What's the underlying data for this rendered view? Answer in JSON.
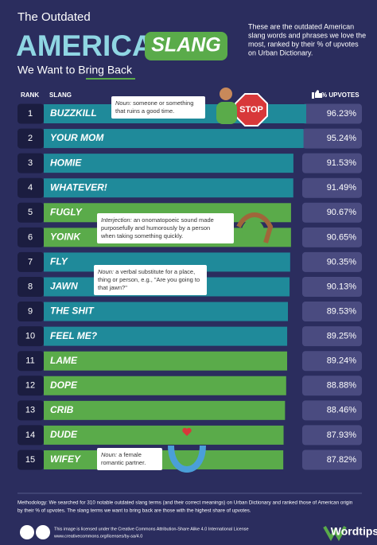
{
  "chart_data": {
    "type": "bar",
    "title_parts": [
      "The Outdated",
      "AMERICAN",
      "SLANG",
      "We Want to Bring Back"
    ],
    "description": [
      "These are the outdated American",
      "slang words and phrases we love the",
      "most, ranked by their % of upvotes",
      "on Urban Dictionary."
    ],
    "headers": [
      "RANK",
      "SLANG",
      "% UPVOTES"
    ],
    "ranks": [
      "1",
      "2",
      "3",
      "4",
      "5",
      "6",
      "7",
      "8",
      "9",
      "10",
      "11",
      "12",
      "13",
      "14",
      "15"
    ],
    "categories": [
      "BUZZKILL",
      "YOUR MOM",
      "HOMIE",
      "WHATEVER!",
      "FUGLY",
      "YOINK",
      "FLY",
      "JAWN",
      "THE SHIT",
      "FEEL ME?",
      "LAME",
      "DOPE",
      "CRIB",
      "DUDE",
      "WIFEY"
    ],
    "values": [
      96.23,
      95.24,
      91.53,
      91.49,
      90.67,
      90.65,
      90.35,
      90.13,
      89.53,
      89.25,
      89.24,
      88.88,
      88.46,
      87.93,
      87.82
    ],
    "value_labels": [
      "96.23%",
      "95.24%",
      "91.53%",
      "91.49%",
      "90.67%",
      "90.65%",
      "90.35%",
      "90.13%",
      "89.53%",
      "89.25%",
      "89.24%",
      "88.88%",
      "88.46%",
      "87.93%",
      "87.82%"
    ],
    "colors": [
      "#1f8a9a",
      "#1f8a9a",
      "#1f8a9a",
      "#1f8a9a",
      "#5aab4a",
      "#5aab4a",
      "#1f8a9a",
      "#1f8a9a",
      "#1f8a9a",
      "#1f8a9a",
      "#5aab4a",
      "#5aab4a",
      "#5aab4a",
      "#5aab4a",
      "#5aab4a"
    ],
    "annotations": [
      {
        "pos": "Noun:",
        "lines": [
          "someone or something",
          "that ruins a good time."
        ]
      },
      {
        "pos": "Interjection:",
        "lines": [
          "an onomatopoeic sound made",
          "purposefully and humorously by a person",
          "when taking something quickly."
        ]
      },
      {
        "pos": "Noun:",
        "lines": [
          "a verbal substitute for a place,",
          "thing or person, e.g., \"Are you going to",
          "that jawn?\""
        ]
      },
      {
        "pos": "Noun:",
        "lines": [
          "a female",
          "romantic partner."
        ]
      }
    ],
    "sign": "STOP",
    "methodology": [
      "Methodology: We searched for 310 notable outdated slang terms (and their correct meanings) on Urban Dictionary and ranked those of American origin",
      "by their % of upvotes. The slang terms we want to bring back are those with the highest share of upvotes."
    ],
    "license": [
      "This image is licensed under the Creative Commons Attribution-Share Alike 4.0 International License",
      "www.creativecommons.org/licenses/by-sa/4.0"
    ],
    "brand": "Wordtips"
  }
}
